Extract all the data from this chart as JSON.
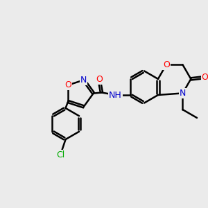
{
  "bg_color": "#ebebeb",
  "bond_color": "#000000",
  "bond_width": 1.8,
  "atom_colors": {
    "O": "#ff0000",
    "N": "#0000cc",
    "Cl": "#00aa00",
    "C": "#000000",
    "H": "#000000"
  },
  "font_size": 9.0,
  "font_size_small": 8.5
}
